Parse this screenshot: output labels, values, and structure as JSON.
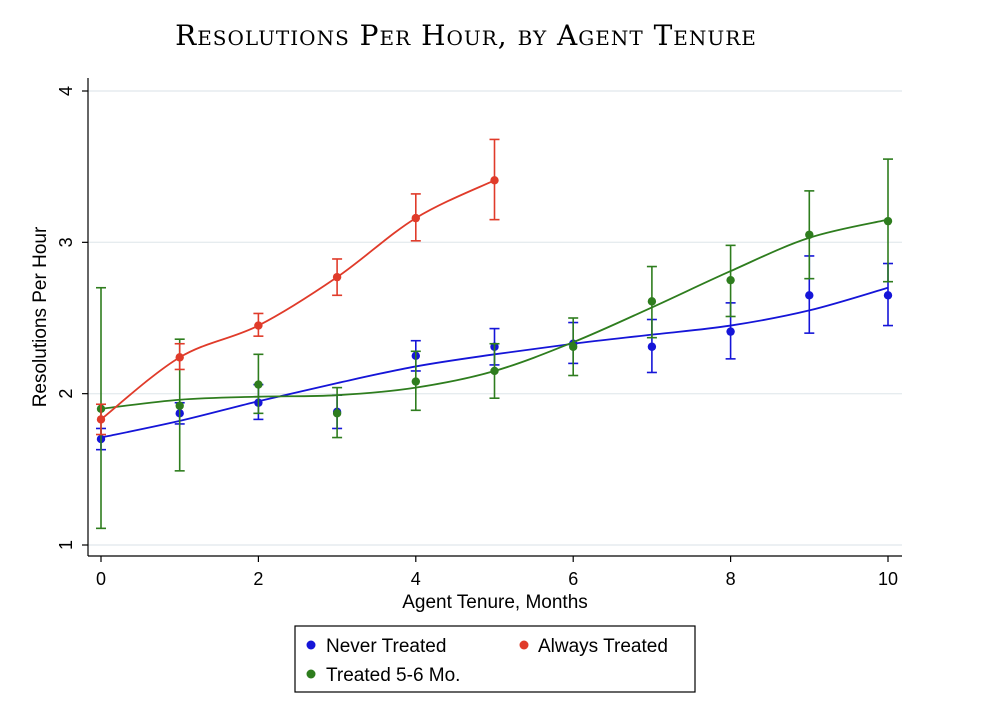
{
  "chart_data": {
    "type": "scatter",
    "title": "Resolutions Per Hour, by Agent Tenure",
    "xlabel": "Agent Tenure, Months",
    "ylabel": "Resolutions Per Hour",
    "xlim": [
      0,
      10
    ],
    "ylim": [
      1,
      4
    ],
    "x_ticks": [
      0,
      2,
      4,
      6,
      8,
      10
    ],
    "y_ticks": [
      1,
      2,
      3,
      4
    ],
    "grid": true,
    "legend_position": "bottom",
    "series": [
      {
        "name": "Never Treated",
        "color": "#1515d8",
        "x": [
          0,
          1,
          2,
          3,
          4,
          5,
          6,
          7,
          8,
          9,
          10
        ],
        "y": [
          1.7,
          1.87,
          1.94,
          1.88,
          2.25,
          2.31,
          2.33,
          2.31,
          2.41,
          2.65,
          2.65
        ],
        "ci_low": [
          1.63,
          1.8,
          1.83,
          1.77,
          2.15,
          2.19,
          2.2,
          2.14,
          2.23,
          2.4,
          2.45
        ],
        "ci_high": [
          1.77,
          1.94,
          2.06,
          1.99,
          2.35,
          2.43,
          2.47,
          2.49,
          2.6,
          2.91,
          2.86
        ],
        "fit": [
          1.71,
          1.82,
          1.95,
          2.07,
          2.18,
          2.26,
          2.33,
          2.39,
          2.45,
          2.55,
          2.7
        ]
      },
      {
        "name": "Always Treated",
        "color": "#e03b2a",
        "x": [
          0,
          1,
          2,
          3,
          4,
          5
        ],
        "y": [
          1.83,
          2.24,
          2.45,
          2.77,
          3.16,
          3.41
        ],
        "ci_low": [
          1.73,
          2.16,
          2.38,
          2.65,
          3.01,
          3.15
        ],
        "ci_high": [
          1.93,
          2.33,
          2.53,
          2.89,
          3.32,
          3.68
        ],
        "fit": [
          1.83,
          2.24,
          2.45,
          2.77,
          3.16,
          3.41
        ]
      },
      {
        "name": "Treated 5-6 Mo.",
        "color": "#2e7d1e",
        "x": [
          0,
          1,
          2,
          3,
          4,
          5,
          6,
          7,
          8,
          9,
          10
        ],
        "y": [
          1.9,
          1.92,
          2.06,
          1.87,
          2.08,
          2.15,
          2.31,
          2.61,
          2.75,
          3.05,
          3.14
        ],
        "ci_low": [
          1.11,
          1.49,
          1.87,
          1.71,
          1.89,
          1.97,
          2.12,
          2.37,
          2.51,
          2.76,
          2.74
        ],
        "ci_high": [
          2.7,
          2.36,
          2.26,
          2.04,
          2.28,
          2.33,
          2.5,
          2.84,
          2.98,
          3.34,
          3.55
        ],
        "fit": [
          1.9,
          1.96,
          1.98,
          1.99,
          2.04,
          2.15,
          2.34,
          2.57,
          2.81,
          3.03,
          3.15
        ]
      }
    ]
  }
}
